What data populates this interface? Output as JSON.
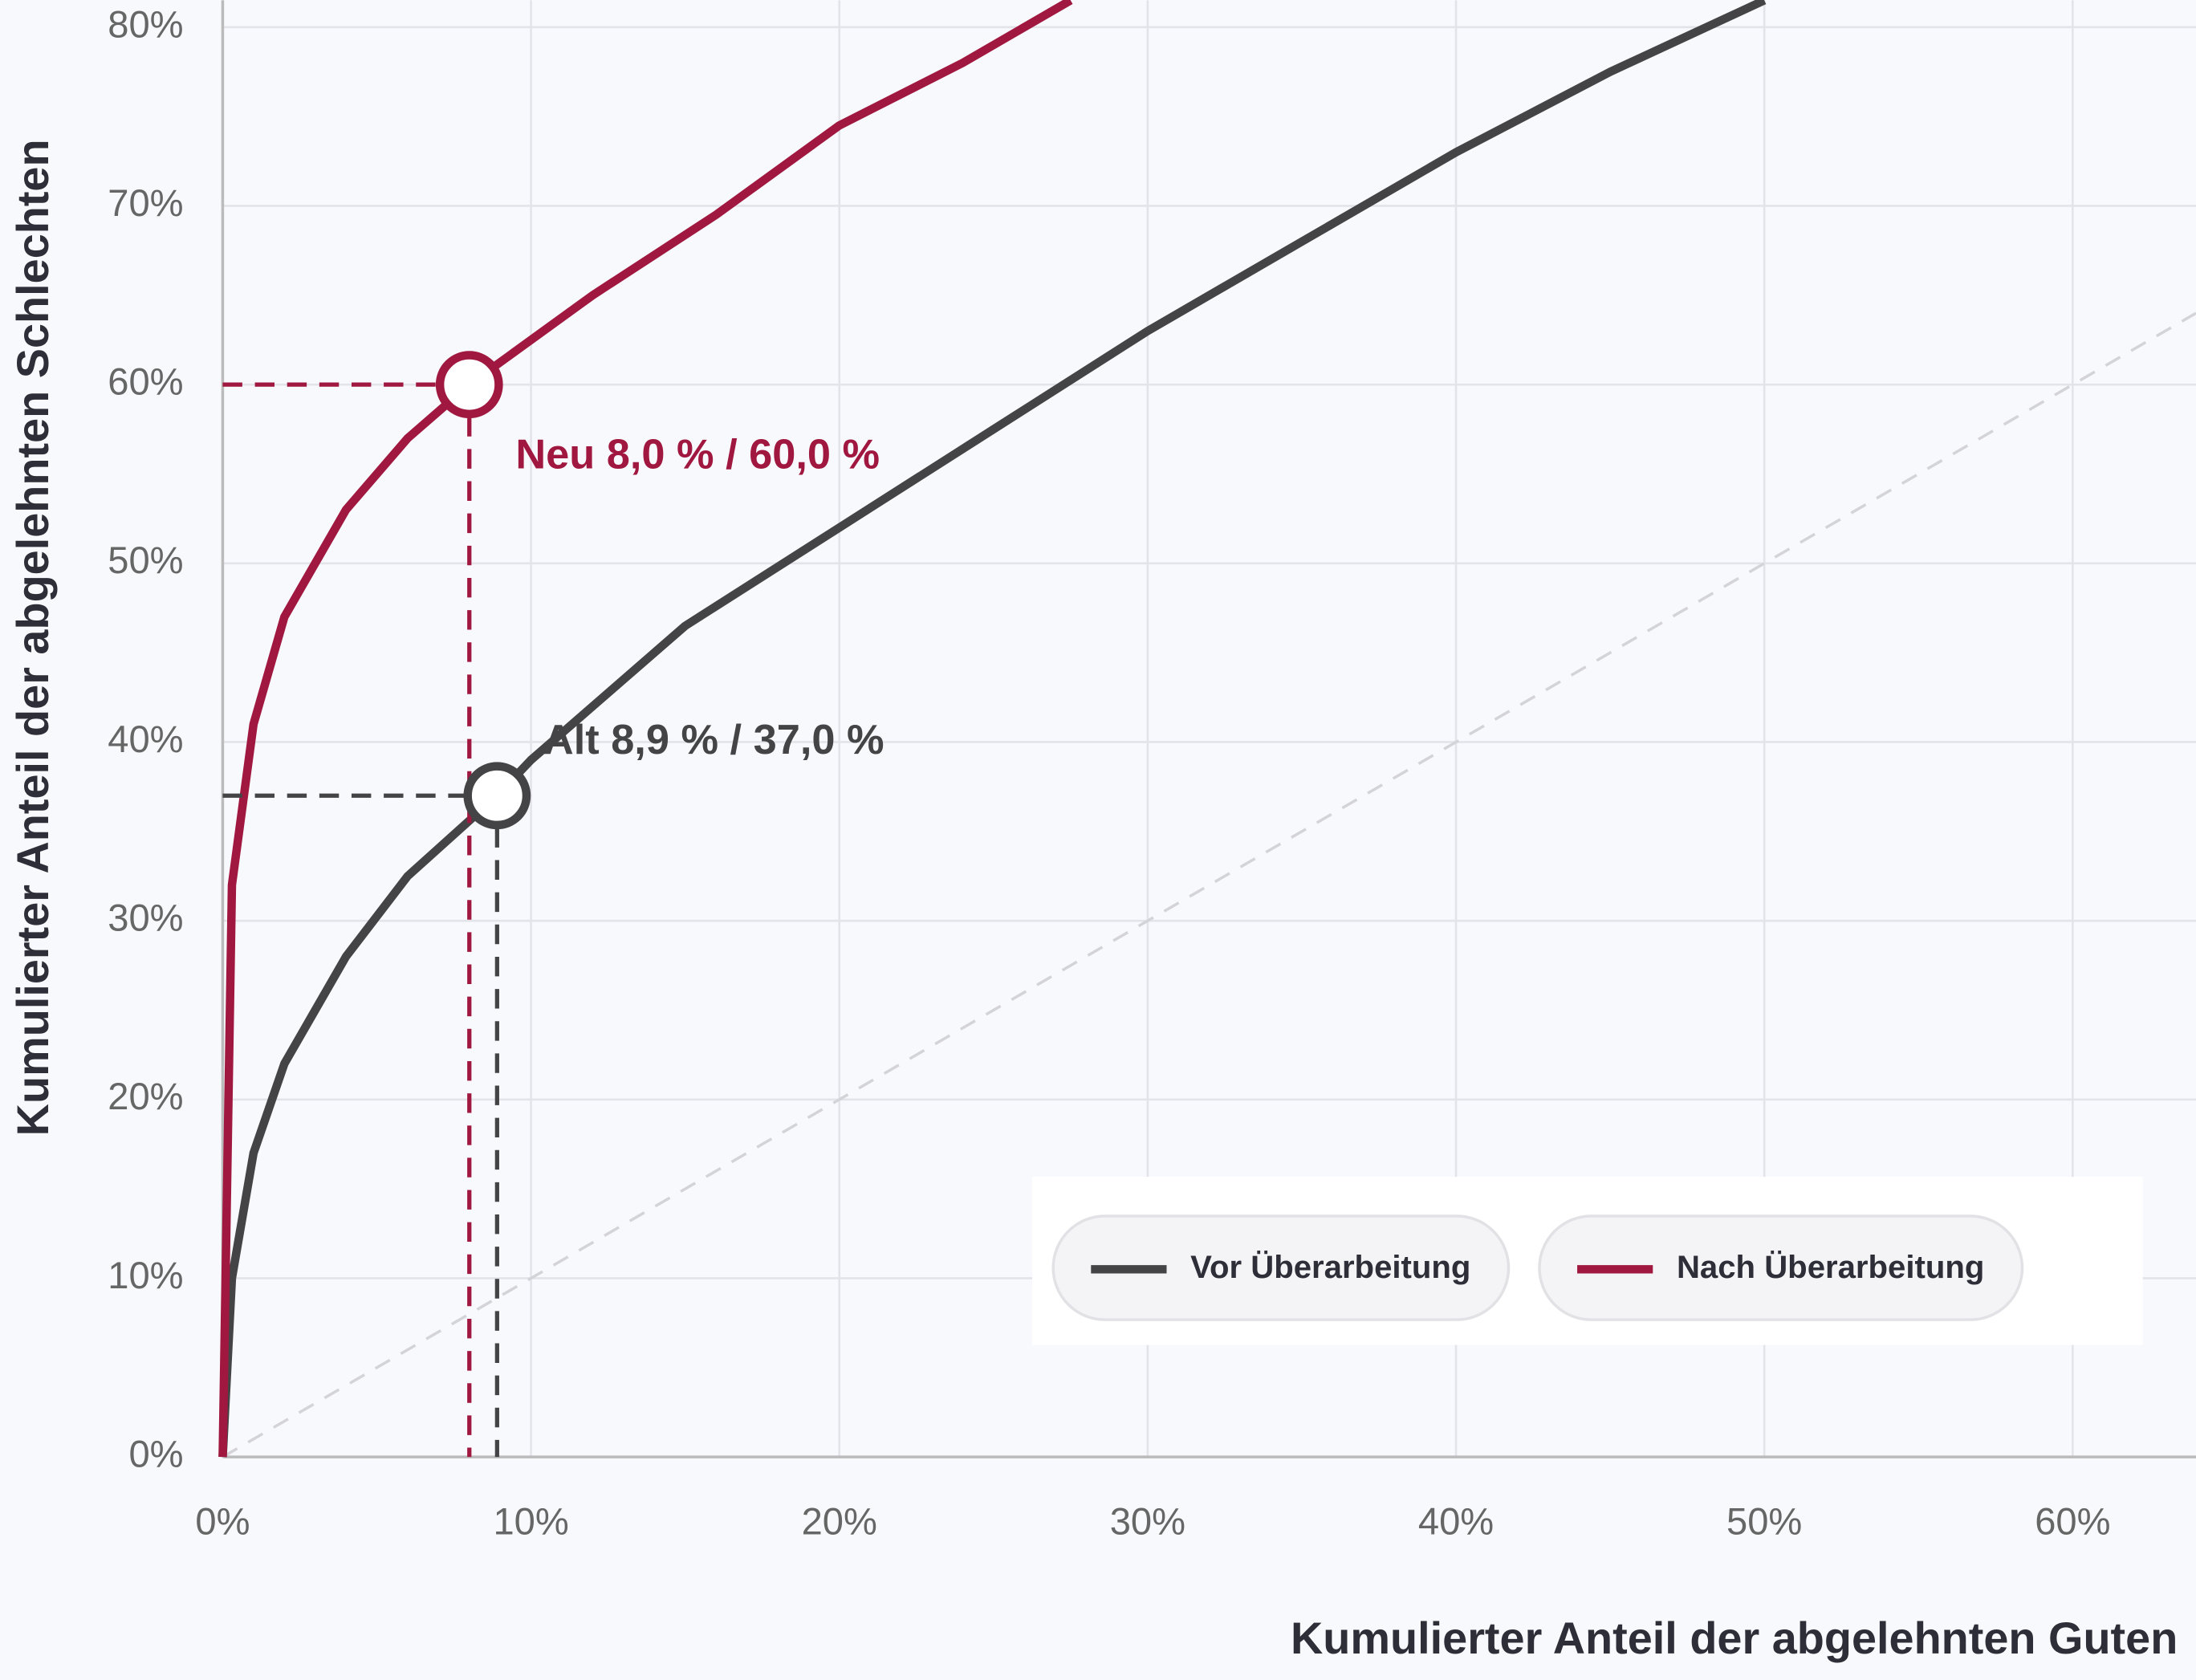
{
  "chart_data": {
    "type": "line",
    "x_label": "Kumulierter Anteil der abgelehnten Guten",
    "y_label": "Kumulierter Anteil der abgelehnten Schlechten",
    "xlim": [
      0,
      64
    ],
    "ylim": [
      0,
      81.5
    ],
    "xticks": [
      {
        "value": 0,
        "label": "0%"
      },
      {
        "value": 10,
        "label": "10%"
      },
      {
        "value": 20,
        "label": "20%"
      },
      {
        "value": 30,
        "label": "30%"
      },
      {
        "value": 40,
        "label": "40%"
      },
      {
        "value": 50,
        "label": "50%"
      },
      {
        "value": 60,
        "label": "60%"
      }
    ],
    "yticks": [
      {
        "value": 0,
        "label": "0%"
      },
      {
        "value": 10,
        "label": "10%"
      },
      {
        "value": 20,
        "label": "20%"
      },
      {
        "value": 30,
        "label": "30%"
      },
      {
        "value": 40,
        "label": "40%"
      },
      {
        "value": 50,
        "label": "50%"
      },
      {
        "value": 60,
        "label": "60%"
      },
      {
        "value": 70,
        "label": "70%"
      },
      {
        "value": 80,
        "label": "80%"
      }
    ],
    "grid": true,
    "diagonal": true,
    "legend": "lower right",
    "series": [
      {
        "name": "Vor Überarbeitung",
        "color": "#444446",
        "x": [
          0,
          0.3,
          1,
          2,
          4,
          6,
          8.9,
          10,
          15,
          20,
          25,
          30,
          35,
          40,
          45,
          50
        ],
        "values": [
          0,
          10,
          17,
          22,
          28,
          32.5,
          37,
          39,
          46.5,
          52,
          57.5,
          63,
          68,
          73,
          77.5,
          81.5
        ]
      },
      {
        "name": "Nach Überarbeitung",
        "color": "#a0173f",
        "x": [
          0,
          0.3,
          1,
          2,
          4,
          6,
          8,
          12,
          16,
          20,
          24,
          27.5
        ],
        "values": [
          0,
          32,
          41,
          47,
          53,
          57,
          60,
          65,
          69.5,
          74.5,
          78,
          81.5
        ]
      }
    ],
    "markers": [
      {
        "series": 1,
        "x": 8,
        "y": 60,
        "label": "Neu 8,0 % / 60,0 %"
      },
      {
        "series": 0,
        "x": 8.9,
        "y": 37,
        "label": "Alt 8,9 % / 37,0 %"
      }
    ]
  }
}
